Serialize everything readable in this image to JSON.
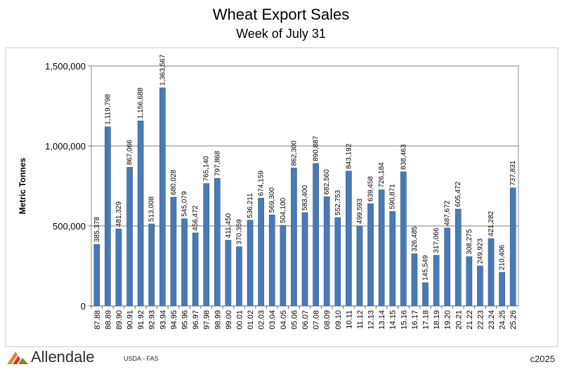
{
  "chart_data": {
    "type": "bar",
    "title": "Wheat Export Sales",
    "subtitle": "Week of July 31",
    "ylabel": "Metric Tonnes",
    "xlabel": "",
    "ylim": [
      0,
      1500000
    ],
    "yticks": [
      {
        "value": 0,
        "label": "0"
      },
      {
        "value": 500000,
        "label": "500,000"
      },
      {
        "value": 1000000,
        "label": "1,000,000"
      },
      {
        "value": 1500000,
        "label": "1,500,000"
      }
    ],
    "grid": true,
    "legend": "none",
    "bar_color": "#4a7ab5",
    "categories": [
      "87.88",
      "88.89",
      "89.90",
      "90.91",
      "91.92",
      "92.93",
      "93.94",
      "94.95",
      "95.96",
      "96.97",
      "97.98",
      "98.99",
      "99.00",
      "00.01",
      "01.02",
      "02.03",
      "03.04",
      "04.05",
      "05.06",
      "06.07",
      "07.08",
      "08.09",
      "09.10",
      "10.11",
      "11.12",
      "12.13",
      "13.14",
      "14.15",
      "15.16",
      "16.17",
      "17.18",
      "18.19",
      "19.20",
      "20.21",
      "21.22",
      "22.23",
      "23.24",
      "24.25",
      "25.26"
    ],
    "values": [
      385378,
      1119798,
      481329,
      867066,
      1156688,
      513008,
      1363567,
      680028,
      545079,
      456472,
      765140,
      797868,
      411450,
      370359,
      536211,
      674159,
      569300,
      504100,
      862300,
      583400,
      890887,
      682560,
      552753,
      843192,
      499593,
      639458,
      726184,
      590871,
      838463,
      326485,
      145549,
      317066,
      487672,
      605472,
      308275,
      249923,
      421282,
      210406,
      737831
    ],
    "labels": [
      "385,378",
      "1,119,798",
      "481,329",
      "867,066",
      "1,156,688",
      "513,008",
      "1,363,567",
      "680,028",
      "545,079",
      "456,472",
      "765,140",
      "797,868",
      "411,450",
      "370,359",
      "536,211",
      "674,159",
      "569,300",
      "504,100",
      "862,300",
      "583,400",
      "890,887",
      "682,560",
      "552,753",
      "843,192",
      "499,593",
      "639,458",
      "726,184",
      "590,871",
      "838,463",
      "326,485",
      "145,549",
      "317,066",
      "487,672",
      "605,472",
      "308,275",
      "249,923",
      "421,282",
      "210,406",
      "737,831"
    ]
  },
  "footer": {
    "logo_text": "Allendale",
    "source": "USDA - FAS",
    "copyright": "c2025"
  }
}
